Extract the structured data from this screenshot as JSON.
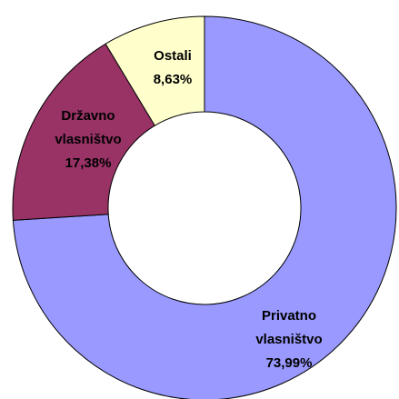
{
  "chart_data": {
    "type": "donut",
    "categories": [
      "Privatno vlasništvo",
      "Državno vlasništvo",
      "Ostali"
    ],
    "values": [
      73.99,
      17.38,
      8.63
    ],
    "value_labels": [
      "73,99%",
      "17,38%",
      "8,63%"
    ],
    "colors": [
      "#9999ff",
      "#993366",
      "#ffffcc"
    ]
  }
}
